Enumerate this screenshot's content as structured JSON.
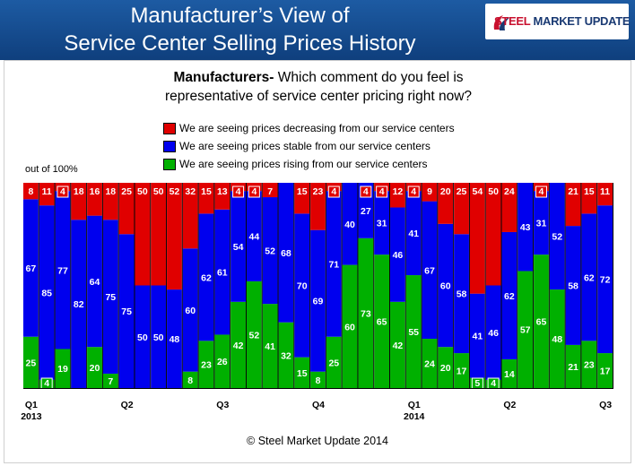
{
  "header": {
    "title_line1": "Manufacturer’s View of",
    "title_line2": "Service Center Selling Prices History",
    "logo_text_a": "STEEL",
    "logo_text_b": "MARKET UPDATE"
  },
  "chart_data": {
    "type": "bar",
    "stacked": true,
    "question_bold": "Manufacturers-",
    "question_rest": " Which comment do you feel is",
    "question_line2": "representative of service center pricing right now?",
    "ylabel": "out of 100%",
    "ylim": [
      0,
      100
    ],
    "series": [
      {
        "name": "We are seeing prices decreasing from our service centers",
        "color": "#e00000",
        "values": [
          8,
          11,
          4,
          18,
          16,
          18,
          25,
          50,
          50,
          52,
          32,
          15,
          13,
          4,
          4,
          7,
          0,
          15,
          23,
          4,
          0,
          4,
          4,
          12,
          4,
          9,
          20,
          25,
          54,
          50,
          24,
          0,
          4,
          0,
          21,
          15,
          11
        ]
      },
      {
        "name": "We are seeing prices stable from our service centers",
        "color": "#0000ee",
        "values": [
          67,
          85,
          77,
          82,
          64,
          75,
          75,
          50,
          50,
          48,
          60,
          62,
          61,
          54,
          44,
          52,
          68,
          70,
          69,
          71,
          40,
          27,
          31,
          46,
          41,
          67,
          60,
          58,
          41,
          46,
          62,
          43,
          31,
          52,
          58,
          62,
          72
        ]
      },
      {
        "name": "We are seeing prices rising from our service centers",
        "color": "#00b000",
        "values": [
          25,
          4,
          19,
          0,
          20,
          7,
          0,
          0,
          0,
          0,
          8,
          23,
          26,
          42,
          52,
          41,
          32,
          15,
          8,
          25,
          60,
          73,
          65,
          42,
          55,
          24,
          20,
          17,
          5,
          4,
          14,
          57,
          65,
          48,
          21,
          23,
          17
        ]
      }
    ],
    "x_ticks": [
      {
        "index": 0,
        "label": "Q1",
        "year": "2013"
      },
      {
        "index": 6,
        "label": "Q2"
      },
      {
        "index": 12,
        "label": "Q3"
      },
      {
        "index": 18,
        "label": "Q4"
      },
      {
        "index": 24,
        "label": "Q1",
        "year": "2014"
      },
      {
        "index": 30,
        "label": "Q2"
      },
      {
        "index": 36,
        "label": "Q3"
      }
    ],
    "grid": false,
    "legend": "top-center"
  },
  "footer": {
    "copyright": "© Steel Market Update 2014"
  }
}
